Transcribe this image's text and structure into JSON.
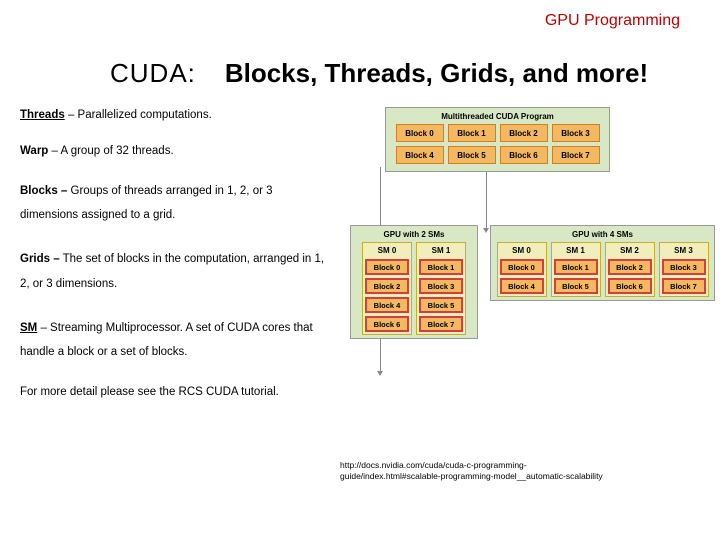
{
  "header": "GPU Programming",
  "title": {
    "cuda": "CUDA:",
    "rest": "Blocks, Threads, Grids, and more!"
  },
  "defs": {
    "threads": {
      "term": "Threads",
      "text": " – Parallelized computations."
    },
    "warp": {
      "term": "Warp",
      "text": " – A group of 32 threads."
    },
    "blocks": {
      "term": "Blocks –",
      "text": " Groups of threads arranged in 1, 2, or 3 dimensions assigned to a grid."
    },
    "grids": {
      "term": "Grids –",
      "text": " The set of blocks in the computation, arranged in 1, 2, or 3 dimensions."
    },
    "sm": {
      "term": "SM",
      "text": " – Streaming Multiprocessor.  A set of CUDA cores that handle a block or a set of blocks."
    },
    "detail": "For more detail please see the RCS CUDA tutorial."
  },
  "prog": {
    "title": "Multithreaded CUDA Program",
    "row1": [
      "Block 0",
      "Block 1",
      "Block 2",
      "Block 3"
    ],
    "row2": [
      "Block 4",
      "Block 5",
      "Block 6",
      "Block 7"
    ]
  },
  "gpu2": {
    "title": "GPU with 2 SMs",
    "sm0": {
      "label": "SM 0",
      "blocks": [
        "Block 0",
        "Block 2",
        "Block 4",
        "Block 6"
      ]
    },
    "sm1": {
      "label": "SM 1",
      "blocks": [
        "Block 1",
        "Block 3",
        "Block 5",
        "Block 7"
      ]
    }
  },
  "gpu4": {
    "title": "GPU with 4 SMs",
    "sm0": {
      "label": "SM 0",
      "blocks": [
        "Block 0",
        "Block 4"
      ]
    },
    "sm1": {
      "label": "SM 1",
      "blocks": [
        "Block 1",
        "Block 5"
      ]
    },
    "sm2": {
      "label": "SM 2",
      "blocks": [
        "Block 2",
        "Block 6"
      ]
    },
    "sm3": {
      "label": "SM 3",
      "blocks": [
        "Block 3",
        "Block 7"
      ]
    }
  },
  "url": {
    "line1": "http://docs.nvidia.com/cuda/cuda-c-programming-",
    "line2": "guide/index.html#scalable-programming-model__automatic-scalability"
  },
  "colors": {
    "header": "#c00000",
    "block_bg": "#f4b860",
    "block_border": "#d08020",
    "panel_bg": "#d8e8c4",
    "sm_bg": "#f2eebc",
    "sm_border": "#c4b030",
    "sblock_border": "#d04040"
  }
}
